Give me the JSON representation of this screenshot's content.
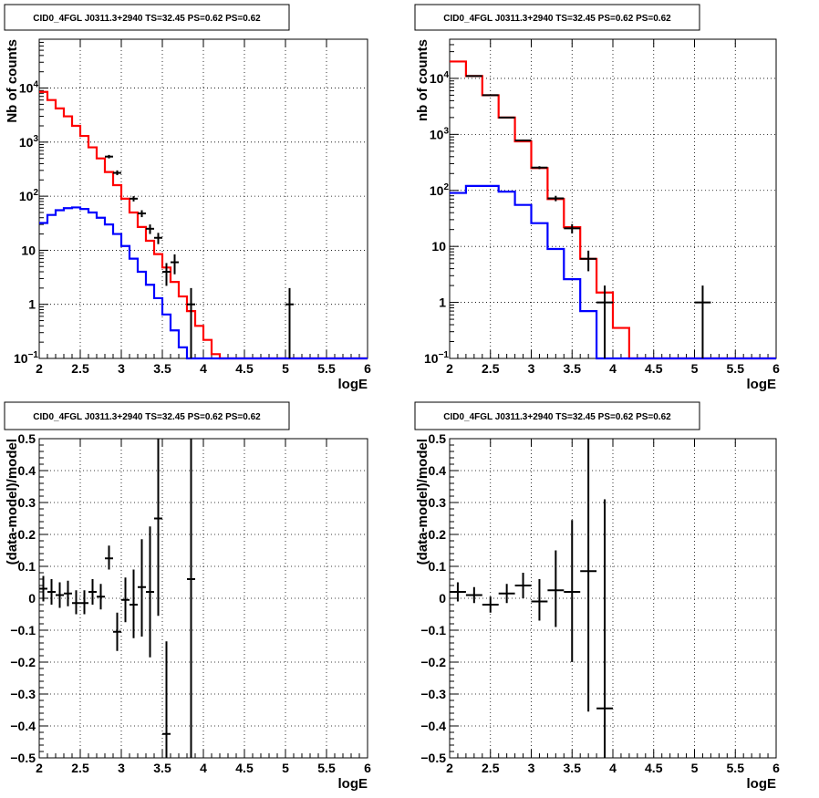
{
  "chart_data": [
    {
      "type": "step",
      "title": "CID0_4FGL J0311.3+2940 TS=32.45 PS=0.62 PS=0.62",
      "xlabel": "logE",
      "ylabel": "Nb of counts",
      "xlim": [
        2,
        6
      ],
      "ylim": [
        0.1,
        80000
      ],
      "yscale": "log",
      "grid": true,
      "xticks": [
        "2",
        "2.5",
        "3",
        "3.5",
        "4",
        "4.5",
        "5",
        "5.5",
        "6"
      ],
      "yticks": [
        {
          "v": 0.1,
          "t": "10",
          "sup": "−1"
        },
        {
          "v": 1,
          "t": "1",
          "sup": ""
        },
        {
          "v": 10,
          "t": "10",
          "sup": ""
        },
        {
          "v": 100,
          "t": "10",
          "sup": "2"
        },
        {
          "v": 1000,
          "t": "10",
          "sup": "3"
        },
        {
          "v": 10000,
          "t": "10",
          "sup": "4"
        }
      ],
      "series": [
        {
          "color": "#ff0000",
          "edges": [
            2,
            2.1,
            2.2,
            2.3,
            2.4,
            2.5,
            2.6,
            2.7,
            2.8,
            2.9,
            3.0,
            3.1,
            3.2,
            3.3,
            3.4,
            3.5,
            3.6,
            3.7,
            3.8,
            3.9,
            4.0,
            4.1,
            4.2,
            4.3
          ],
          "values": [
            8500,
            6000,
            4200,
            3000,
            2000,
            1300,
            800,
            500,
            280,
            160,
            90,
            50,
            27,
            15,
            8.5,
            4.8,
            2.6,
            1.4,
            0.75,
            0.4,
            0.22,
            0.12,
            0.08
          ]
        },
        {
          "color": "#0000ff",
          "edges": [
            2,
            2.1,
            2.2,
            2.3,
            2.4,
            2.5,
            2.6,
            2.7,
            2.8,
            2.9,
            3.0,
            3.1,
            3.2,
            3.3,
            3.4,
            3.5,
            3.6,
            3.7,
            3.8
          ],
          "values": [
            32,
            45,
            55,
            60,
            62,
            58,
            50,
            40,
            30,
            20,
            12,
            7,
            4,
            2.3,
            1.3,
            0.65,
            0.33,
            0.16
          ]
        }
      ],
      "points": [
        {
          "x": 2.85,
          "xerr": 0.05,
          "y": 540,
          "ylo": 500,
          "yhi": 580
        },
        {
          "x": 2.95,
          "xerr": 0.05,
          "y": 270,
          "ylo": 245,
          "yhi": 300
        },
        {
          "x": 3.15,
          "xerr": 0.05,
          "y": 90,
          "ylo": 80,
          "yhi": 100
        },
        {
          "x": 3.25,
          "xerr": 0.05,
          "y": 48,
          "ylo": 41,
          "yhi": 55
        },
        {
          "x": 3.35,
          "xerr": 0.05,
          "y": 25,
          "ylo": 20,
          "yhi": 30
        },
        {
          "x": 3.45,
          "xerr": 0.05,
          "y": 17,
          "ylo": 13,
          "yhi": 21
        },
        {
          "x": 3.55,
          "xerr": 0.05,
          "y": 4,
          "ylo": 2.2,
          "yhi": 5.8
        },
        {
          "x": 3.65,
          "xerr": 0.05,
          "y": 6,
          "ylo": 3.6,
          "yhi": 8.4
        },
        {
          "x": 3.85,
          "xerr": 0.05,
          "y": 1,
          "ylo": 0.1,
          "yhi": 2
        },
        {
          "x": 5.05,
          "xerr": 0.05,
          "y": 1,
          "ylo": 0.1,
          "yhi": 2
        }
      ]
    },
    {
      "type": "step",
      "title": "CID0_4FGL J0311.3+2940 TS=32.45 PS=0.62 PS=0.62",
      "xlabel": "logE",
      "ylabel": "nb of counts",
      "xlim": [
        2,
        6
      ],
      "ylim": [
        0.1,
        50000
      ],
      "yscale": "log",
      "grid": true,
      "xticks": [
        "2",
        "2.5",
        "3",
        "3.5",
        "4",
        "4.5",
        "5",
        "5.5",
        "6"
      ],
      "yticks": [
        {
          "v": 0.1,
          "t": "10",
          "sup": "−1"
        },
        {
          "v": 1,
          "t": "1",
          "sup": ""
        },
        {
          "v": 10,
          "t": "10",
          "sup": ""
        },
        {
          "v": 100,
          "t": "10",
          "sup": "2"
        },
        {
          "v": 1000,
          "t": "10",
          "sup": "3"
        },
        {
          "v": 10000,
          "t": "10",
          "sup": "4"
        }
      ],
      "series": [
        {
          "color": "#ff0000",
          "edges": [
            2,
            2.2,
            2.4,
            2.6,
            2.8,
            3.0,
            3.2,
            3.4,
            3.6,
            3.8,
            4.0,
            4.2,
            4.4
          ],
          "values": [
            20000,
            11000,
            5000,
            2000,
            750,
            250,
            70,
            22,
            6,
            1.5,
            0.35,
            0.1
          ]
        },
        {
          "color": "#0000ff",
          "edges": [
            2,
            2.2,
            2.4,
            2.6,
            2.8,
            3.0,
            3.2,
            3.4,
            3.6,
            3.8
          ],
          "values": [
            90,
            120,
            120,
            95,
            55,
            26,
            9,
            2.6,
            0.7
          ]
        }
      ],
      "points": [
        {
          "x": 2.3,
          "xerr": 0.1,
          "y": 11000,
          "ylo": 10800,
          "yhi": 11200
        },
        {
          "x": 2.5,
          "xerr": 0.1,
          "y": 5000,
          "ylo": 4900,
          "yhi": 5100
        },
        {
          "x": 2.7,
          "xerr": 0.1,
          "y": 2000,
          "ylo": 1950,
          "yhi": 2050
        },
        {
          "x": 2.9,
          "xerr": 0.1,
          "y": 780,
          "ylo": 750,
          "yhi": 810
        },
        {
          "x": 3.1,
          "xerr": 0.1,
          "y": 255,
          "ylo": 240,
          "yhi": 270
        },
        {
          "x": 3.3,
          "xerr": 0.1,
          "y": 72,
          "ylo": 64,
          "yhi": 80
        },
        {
          "x": 3.5,
          "xerr": 0.1,
          "y": 21,
          "ylo": 17,
          "yhi": 25
        },
        {
          "x": 3.7,
          "xerr": 0.1,
          "y": 6,
          "ylo": 3.6,
          "yhi": 8.4
        },
        {
          "x": 3.9,
          "xerr": 0.1,
          "y": 1,
          "ylo": 0.1,
          "yhi": 2
        },
        {
          "x": 5.1,
          "xerr": 0.1,
          "y": 1,
          "ylo": 0.1,
          "yhi": 2
        }
      ]
    },
    {
      "type": "scatter",
      "title": "CID0_4FGL J0311.3+2940 TS=32.45 PS=0.62 PS=0.62",
      "xlabel": "logE",
      "ylabel": "(data-model)/model",
      "xlim": [
        2,
        6
      ],
      "ylim": [
        -0.5,
        0.5
      ],
      "yscale": "linear",
      "grid": true,
      "xticks": [
        "2",
        "2.5",
        "3",
        "3.5",
        "4",
        "4.5",
        "5",
        "5.5",
        "6"
      ],
      "yticks": [
        {
          "v": -0.5,
          "t": "−0.5"
        },
        {
          "v": -0.4,
          "t": "−0.4"
        },
        {
          "v": -0.3,
          "t": "−0.3"
        },
        {
          "v": -0.2,
          "t": "−0.2"
        },
        {
          "v": -0.1,
          "t": "−0.1"
        },
        {
          "v": 0,
          "t": "0"
        },
        {
          "v": 0.1,
          "t": "0.1"
        },
        {
          "v": 0.2,
          "t": "0.2"
        },
        {
          "v": 0.3,
          "t": "0.3"
        },
        {
          "v": 0.4,
          "t": "0.4"
        },
        {
          "v": 0.5,
          "t": "0.5"
        }
      ],
      "points": [
        {
          "x": 2.05,
          "xerr": 0.05,
          "y": 0.03,
          "ylo": -0.01,
          "yhi": 0.07
        },
        {
          "x": 2.15,
          "xerr": 0.05,
          "y": 0.02,
          "ylo": -0.02,
          "yhi": 0.06
        },
        {
          "x": 2.25,
          "xerr": 0.05,
          "y": 0.01,
          "ylo": -0.03,
          "yhi": 0.05
        },
        {
          "x": 2.35,
          "xerr": 0.05,
          "y": 0.015,
          "ylo": -0.025,
          "yhi": 0.055
        },
        {
          "x": 2.45,
          "xerr": 0.05,
          "y": -0.015,
          "ylo": -0.05,
          "yhi": 0.025
        },
        {
          "x": 2.55,
          "xerr": 0.05,
          "y": -0.015,
          "ylo": -0.05,
          "yhi": 0.025
        },
        {
          "x": 2.65,
          "xerr": 0.05,
          "y": 0.02,
          "ylo": -0.02,
          "yhi": 0.06
        },
        {
          "x": 2.75,
          "xerr": 0.05,
          "y": 0.005,
          "ylo": -0.035,
          "yhi": 0.045
        },
        {
          "x": 2.85,
          "xerr": 0.05,
          "y": 0.125,
          "ylo": 0.09,
          "yhi": 0.165
        },
        {
          "x": 2.95,
          "xerr": 0.05,
          "y": -0.105,
          "ylo": -0.165,
          "yhi": -0.045
        },
        {
          "x": 3.05,
          "xerr": 0.05,
          "y": -0.005,
          "ylo": -0.075,
          "yhi": 0.065
        },
        {
          "x": 3.15,
          "xerr": 0.05,
          "y": -0.02,
          "ylo": -0.125,
          "yhi": 0.09
        },
        {
          "x": 3.25,
          "xerr": 0.05,
          "y": 0.035,
          "ylo": -0.12,
          "yhi": 0.185
        },
        {
          "x": 3.35,
          "xerr": 0.05,
          "y": 0.02,
          "ylo": -0.185,
          "yhi": 0.225
        },
        {
          "x": 3.45,
          "xerr": 0.05,
          "y": 0.25,
          "ylo": -0.055,
          "yhi": 0.5
        },
        {
          "x": 3.55,
          "xerr": 0.05,
          "y": -0.425,
          "ylo": -0.5,
          "yhi": -0.135
        },
        {
          "x": 3.85,
          "xerr": 0.05,
          "y": 0.06,
          "ylo": -0.5,
          "yhi": 0.5
        }
      ]
    },
    {
      "type": "scatter",
      "title": "CID0_4FGL J0311.3+2940 TS=32.45 PS=0.62 PS=0.62",
      "xlabel": "logE",
      "ylabel": "(data-model)/model",
      "xlim": [
        2,
        6
      ],
      "ylim": [
        -0.5,
        0.5
      ],
      "yscale": "linear",
      "grid": true,
      "xticks": [
        "2",
        "2.5",
        "3",
        "3.5",
        "4",
        "4.5",
        "5",
        "5.5",
        "6"
      ],
      "yticks": [
        {
          "v": -0.5,
          "t": "−0.5"
        },
        {
          "v": -0.4,
          "t": "−0.4"
        },
        {
          "v": -0.3,
          "t": "−0.3"
        },
        {
          "v": -0.2,
          "t": "−0.2"
        },
        {
          "v": -0.1,
          "t": "−0.1"
        },
        {
          "v": 0,
          "t": "0"
        },
        {
          "v": 0.1,
          "t": "0.1"
        },
        {
          "v": 0.2,
          "t": "0.2"
        },
        {
          "v": 0.3,
          "t": "0.3"
        },
        {
          "v": 0.4,
          "t": "0.4"
        },
        {
          "v": 0.5,
          "t": "0.5"
        }
      ],
      "points": [
        {
          "x": 2.1,
          "xerr": 0.1,
          "y": 0.02,
          "ylo": -0.01,
          "yhi": 0.05
        },
        {
          "x": 2.3,
          "xerr": 0.1,
          "y": 0.01,
          "ylo": -0.015,
          "yhi": 0.035
        },
        {
          "x": 2.5,
          "xerr": 0.1,
          "y": -0.02,
          "ylo": -0.045,
          "yhi": 0.005
        },
        {
          "x": 2.7,
          "xerr": 0.1,
          "y": 0.015,
          "ylo": -0.015,
          "yhi": 0.045
        },
        {
          "x": 2.9,
          "xerr": 0.1,
          "y": 0.04,
          "ylo": 0.0,
          "yhi": 0.08
        },
        {
          "x": 3.1,
          "xerr": 0.1,
          "y": -0.01,
          "ylo": -0.07,
          "yhi": 0.06
        },
        {
          "x": 3.3,
          "xerr": 0.1,
          "y": 0.025,
          "ylo": -0.09,
          "yhi": 0.15
        },
        {
          "x": 3.5,
          "xerr": 0.1,
          "y": 0.02,
          "ylo": -0.2,
          "yhi": 0.245
        },
        {
          "x": 3.7,
          "xerr": 0.1,
          "y": 0.085,
          "ylo": -0.355,
          "yhi": 0.5
        },
        {
          "x": 3.9,
          "xerr": 0.1,
          "y": -0.345,
          "ylo": -0.5,
          "yhi": 0.31
        }
      ]
    }
  ]
}
